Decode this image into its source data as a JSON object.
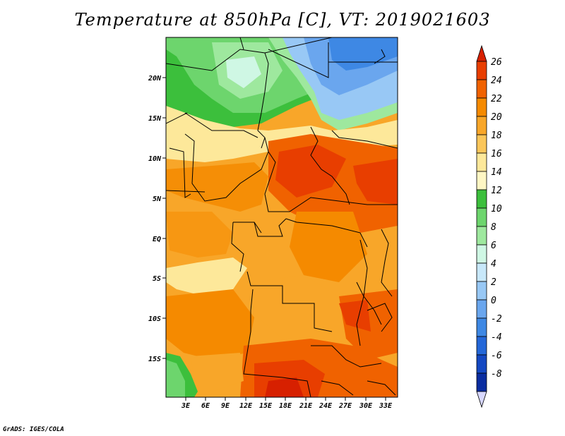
{
  "title": "Temperature at 850hPa [C], VT: 2019021603",
  "credit": "GrADS: IGES/COLA",
  "map": {
    "lat_ticks": [
      "20N",
      "15N",
      "10N",
      "5N",
      "EQ",
      "5S",
      "10S",
      "15S"
    ],
    "lon_ticks": [
      "3E",
      "6E",
      "9E",
      "12E",
      "15E",
      "18E",
      "21E",
      "24E",
      "27E",
      "30E",
      "33E"
    ]
  },
  "colorbar": {
    "labels": [
      "26",
      "24",
      "22",
      "20",
      "18",
      "16",
      "14",
      "12",
      "10",
      "8",
      "6",
      "4",
      "2",
      "0",
      "-2",
      "-4",
      "-6",
      "-8"
    ],
    "colors": [
      "#d72000",
      "#e83e00",
      "#f06200",
      "#f58a00",
      "#f8a629",
      "#fbc65a",
      "#fde89a",
      "#fef6c4",
      "#3cbf3c",
      "#6dd56d",
      "#9ee89e",
      "#cff7e4",
      "#c8e8fa",
      "#98c8f5",
      "#6aa6ee",
      "#3e88e4",
      "#2467d8",
      "#1448c2",
      "#0a2da0",
      "#000a6e"
    ]
  }
}
